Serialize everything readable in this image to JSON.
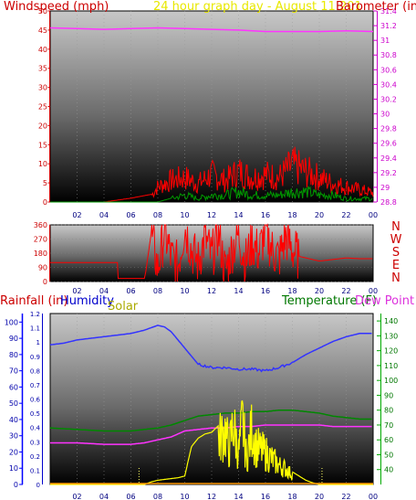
{
  "colors": {
    "wind": "#ff0000",
    "gust": "#ff0000",
    "barometer": "#ff33ff",
    "title": "#ffff00",
    "humidity": "#3333ff",
    "solar": "#ffff00",
    "temperature": "#00aa00",
    "dewpoint": "#ff33ff",
    "rainfall": "#ff9900",
    "axis_blue": "#0000ff"
  },
  "chart_data": [
    {
      "type": "line",
      "title": "24 hour graph day - August 11 201",
      "xlabel": "",
      "x_ticks": [
        "02",
        "04",
        "06",
        "08",
        "10",
        "12",
        "14",
        "16",
        "18",
        "20",
        "22",
        "00"
      ],
      "xlim": [
        0,
        24
      ],
      "left_axis": {
        "label": "Windspeed (mph)",
        "ylim": [
          0,
          50
        ],
        "ticks": [
          "0",
          "5",
          "10",
          "15",
          "20",
          "25",
          "30",
          "35",
          "40",
          "45",
          "50"
        ]
      },
      "right_axis": {
        "label": "Barometer (in)",
        "ylim": [
          28.8,
          31.4
        ],
        "ticks": [
          "28.8",
          "29",
          "29.2",
          "29.4",
          "29.6",
          "29.8",
          "30",
          "30.2",
          "30.4",
          "30.6",
          "30.8",
          "31",
          "31.2",
          "31.4"
        ]
      },
      "series": [
        {
          "name": "Barometer",
          "axis": "right",
          "x": [
            0,
            2,
            4,
            6,
            8,
            10,
            12,
            14,
            16,
            18,
            20,
            22,
            24
          ],
          "values": [
            31.17,
            31.16,
            31.15,
            31.16,
            31.17,
            31.16,
            31.15,
            31.14,
            31.12,
            31.12,
            31.12,
            31.13,
            31.12
          ]
        },
        {
          "name": "Wind gust",
          "axis": "left",
          "x": [
            0,
            4,
            6,
            7.5,
            8,
            9,
            10,
            11,
            12,
            13,
            14,
            15,
            16,
            17,
            18,
            18.5,
            19,
            20,
            21,
            22,
            23,
            24
          ],
          "values": [
            0,
            0,
            1,
            2,
            5,
            7,
            8,
            6,
            9,
            7,
            10,
            8,
            9,
            8,
            12,
            11,
            10,
            8,
            6,
            5,
            4,
            3
          ]
        },
        {
          "name": "Windspeed",
          "axis": "left",
          "x": [
            0,
            8,
            9,
            10,
            11,
            12,
            13,
            14,
            15,
            16,
            17,
            18,
            19,
            20,
            21,
            22,
            23,
            24
          ],
          "values": [
            0,
            0,
            1,
            2,
            1,
            2,
            2,
            3,
            2,
            2,
            2,
            3,
            3,
            2,
            2,
            1,
            1,
            1
          ]
        }
      ]
    },
    {
      "type": "line",
      "title": "",
      "x_ticks": [
        "02",
        "04",
        "06",
        "08",
        "10",
        "12",
        "14",
        "16",
        "18",
        "20",
        "22",
        "00"
      ],
      "xlim": [
        0,
        24
      ],
      "left_axis": {
        "label": "",
        "ylim": [
          0,
          360
        ],
        "ticks": [
          "0",
          "90",
          "180",
          "270",
          "360"
        ]
      },
      "direction_labels": [
        "N",
        "W",
        "S",
        "E",
        "N"
      ],
      "series": [
        {
          "name": "Wind direction",
          "x": [
            0,
            5,
            5.05,
            7,
            7.1,
            7.5,
            8,
            8.5,
            9,
            9.5,
            10,
            10.5,
            11,
            11.5,
            12,
            12.5,
            13,
            13.5,
            14,
            14.5,
            15,
            15.5,
            16,
            16.5,
            17,
            17.5,
            18,
            18.5,
            19,
            20,
            21,
            22,
            23,
            24
          ],
          "values": [
            120,
            120,
            20,
            20,
            60,
            300,
            80,
            320,
            150,
            100,
            350,
            200,
            120,
            280,
            150,
            320,
            60,
            200,
            300,
            120,
            250,
            180,
            320,
            200,
            150,
            280,
            200,
            160,
            150,
            130,
            140,
            150,
            145,
            145
          ]
        }
      ]
    },
    {
      "type": "line",
      "title": "",
      "x_ticks": [
        "02",
        "04",
        "06",
        "08",
        "10",
        "12",
        "14",
        "16",
        "18",
        "20",
        "22",
        "00"
      ],
      "xlim": [
        0,
        24
      ],
      "axes": {
        "rainfall": {
          "label": "Rainfall (in)",
          "ylim": [
            0,
            1.2
          ],
          "ticks": [
            "0",
            "0.1",
            "0.2",
            "0.3",
            "0.4",
            "0.5",
            "0.6",
            "0.7",
            "0.8",
            "0.9",
            "1",
            "1.1",
            "1.2"
          ]
        },
        "humidity": {
          "label": "Humidity",
          "ylim": [
            0,
            100
          ],
          "ticks": [
            "0",
            "10",
            "20",
            "30",
            "40",
            "50",
            "60",
            "70",
            "80",
            "90",
            "100"
          ]
        },
        "solar": {
          "label": "Solar",
          "ticks": []
        },
        "temperature": {
          "label": "Temperature (F)",
          "ylim": [
            30,
            145
          ],
          "ticks": [
            "40",
            "50",
            "60",
            "70",
            "80",
            "90",
            "100",
            "110",
            "120",
            "130",
            "140"
          ]
        },
        "dewpoint": {
          "label": "Dew Point ("
        }
      },
      "series": [
        {
          "name": "Humidity",
          "axis": "humidity",
          "x": [
            0,
            1,
            2,
            3,
            4,
            5,
            6,
            7,
            8,
            8.5,
            9,
            10,
            11,
            12,
            13,
            14,
            15,
            16,
            17,
            18,
            19,
            20,
            21,
            22,
            23,
            24
          ],
          "values": [
            86,
            87,
            89,
            90,
            91,
            92,
            93,
            95,
            98,
            97,
            94,
            84,
            74,
            72,
            72,
            71,
            71,
            70,
            72,
            75,
            80,
            84,
            88,
            91,
            93,
            93
          ]
        },
        {
          "name": "Temperature",
          "axis": "temperature",
          "x": [
            0,
            2,
            4,
            6,
            7,
            8,
            9,
            10,
            11,
            12,
            13,
            14,
            15,
            16,
            17,
            18,
            19,
            20,
            21,
            22,
            23,
            24
          ],
          "values": [
            68,
            67,
            66,
            66,
            67,
            68,
            70,
            73,
            76,
            77,
            78,
            78,
            79,
            79,
            80,
            80,
            79,
            78,
            76,
            75,
            74,
            74
          ]
        },
        {
          "name": "Dew Point",
          "axis": "temperature",
          "x": [
            0,
            2,
            4,
            6,
            7,
            8,
            9,
            10,
            11,
            12,
            13,
            14,
            15,
            16,
            17,
            18,
            19,
            20,
            21,
            22,
            23,
            24
          ],
          "values": [
            58,
            58,
            57,
            57,
            58,
            60,
            62,
            66,
            67,
            68,
            68,
            69,
            69,
            70,
            70,
            70,
            70,
            70,
            69,
            69,
            69,
            69
          ]
        },
        {
          "name": "Solar",
          "axis": "solar",
          "x": [
            0,
            7,
            7.5,
            8,
            8.5,
            9,
            9.5,
            10,
            10.5,
            11,
            11.5,
            12,
            12.5,
            13,
            13.3,
            13.6,
            14,
            14.3,
            14.6,
            15,
            15.3,
            15.6,
            16,
            16.5,
            17,
            17.5,
            18,
            18.5,
            19,
            19.5,
            20,
            24
          ],
          "values": [
            0,
            0,
            3,
            5,
            6,
            7,
            8,
            10,
            45,
            55,
            60,
            62,
            70,
            85,
            55,
            95,
            50,
            100,
            40,
            90,
            60,
            55,
            50,
            40,
            30,
            25,
            15,
            10,
            5,
            2,
            0,
            0
          ]
        },
        {
          "name": "Rainfall",
          "axis": "rainfall",
          "x": [
            0,
            24
          ],
          "values": [
            0,
            0
          ]
        }
      ]
    }
  ]
}
